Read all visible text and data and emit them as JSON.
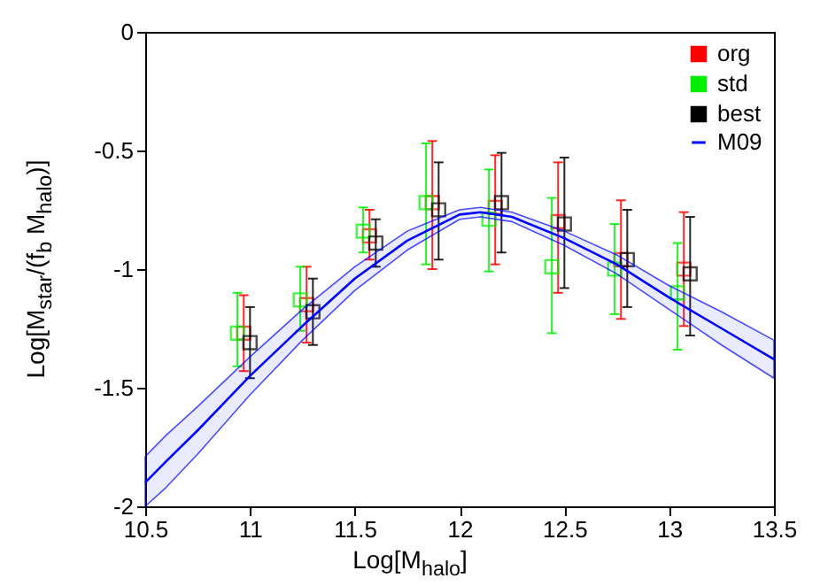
{
  "chart_data": {
    "type": "scatter",
    "xlabel": "Log[M$_{halo}$]",
    "ylabel": "Log[M$_{star}$/(f$_{b}$ M$_{halo}$)]",
    "xlim": [
      10.5,
      13.5
    ],
    "ylim": [
      -2,
      0
    ],
    "xticks": [
      10.5,
      11,
      11.5,
      12,
      12.5,
      13,
      13.5
    ],
    "yticks": [
      -2,
      -1.5,
      -1,
      -0.5,
      0
    ],
    "marker": "square",
    "legend": "top right",
    "series": [
      {
        "name": "org",
        "color": "#ff0000",
        "x": [
          10.97,
          11.27,
          11.57,
          11.87,
          12.17,
          12.47,
          12.77,
          13.07
        ],
        "values": [
          -1.27,
          -1.15,
          -0.86,
          -0.72,
          -0.74,
          -0.8,
          -0.96,
          -1.0
        ],
        "errors": [
          [
            -1.43,
            -1.11
          ],
          [
            -1.31,
            -0.99
          ],
          [
            -0.96,
            -0.75
          ],
          [
            -1.0,
            -0.46
          ],
          [
            -0.98,
            -0.52
          ],
          [
            -1.1,
            -0.55
          ],
          [
            -1.21,
            -0.71
          ],
          [
            -1.24,
            -0.76
          ]
        ]
      },
      {
        "name": "std",
        "color": "#00ee00",
        "x": [
          10.94,
          11.24,
          11.54,
          11.84,
          12.14,
          12.44,
          12.74,
          13.04
        ],
        "values": [
          -1.27,
          -1.13,
          -0.84,
          -0.72,
          -0.79,
          -0.99,
          -1.0,
          -1.1
        ],
        "errors": [
          [
            -1.41,
            -1.1
          ],
          [
            -1.26,
            -0.99
          ],
          [
            -0.93,
            -0.74
          ],
          [
            -0.98,
            -0.47
          ],
          [
            -1.01,
            -0.58
          ],
          [
            -1.27,
            -0.7
          ],
          [
            -1.19,
            -0.81
          ],
          [
            -1.34,
            -0.89
          ]
        ]
      },
      {
        "name": "best",
        "color": "#000000",
        "x": [
          11.0,
          11.3,
          11.6,
          11.9,
          12.2,
          12.5,
          12.8,
          13.1
        ],
        "values": [
          -1.31,
          -1.18,
          -0.89,
          -0.75,
          -0.72,
          -0.81,
          -0.96,
          -1.02
        ],
        "errors": [
          [
            -1.46,
            -1.16
          ],
          [
            -1.32,
            -1.04
          ],
          [
            -0.99,
            -0.79
          ],
          [
            -0.96,
            -0.55
          ],
          [
            -0.93,
            -0.51
          ],
          [
            -1.08,
            -0.53
          ],
          [
            -1.16,
            -0.75
          ],
          [
            -1.28,
            -0.78
          ]
        ]
      },
      {
        "name": "M09",
        "type": "line",
        "marker": "none",
        "color": "#0000ff",
        "x": [
          10.5,
          10.6,
          10.75,
          11,
          11.25,
          11.5,
          11.75,
          12,
          12.1,
          12.25,
          12.5,
          12.75,
          13,
          13.25,
          13.5
        ],
        "values": [
          -1.9,
          -1.81,
          -1.68,
          -1.45,
          -1.24,
          -1.04,
          -0.88,
          -0.77,
          -0.76,
          -0.78,
          -0.87,
          -0.98,
          -1.12,
          -1.25,
          -1.38
        ],
        "upper": [
          -1.79,
          -1.7,
          -1.58,
          -1.37,
          -1.17,
          -0.99,
          -0.84,
          -0.75,
          -0.74,
          -0.76,
          -0.84,
          -0.94,
          -1.07,
          -1.18,
          -1.3
        ],
        "lower": [
          -2.0,
          -1.92,
          -1.78,
          -1.53,
          -1.3,
          -1.09,
          -0.92,
          -0.79,
          -0.78,
          -0.8,
          -0.9,
          -1.02,
          -1.17,
          -1.32,
          -1.46
        ]
      }
    ]
  }
}
